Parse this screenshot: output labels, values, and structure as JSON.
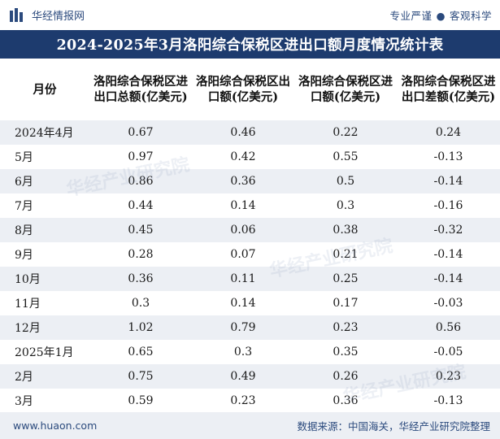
{
  "header": {
    "brand": "华经情报网",
    "tagline_left": "专业严谨",
    "tagline_right": "客观科学"
  },
  "title": "2024-2025年3月洛阳综合保税区进出口额月度情况统计表",
  "table": {
    "columns": [
      "月份",
      "洛阳综合保税区进出口总额(亿美元)",
      "洛阳综合保税区出口额(亿美元)",
      "洛阳综合保税区进口额(亿美元)",
      "洛阳综合保税区进出口差额(亿美元)"
    ],
    "rows": [
      [
        "2024年4月",
        "0.67",
        "0.46",
        "0.22",
        "0.24"
      ],
      [
        "5月",
        "0.97",
        "0.42",
        "0.55",
        "-0.13"
      ],
      [
        "6月",
        "0.86",
        "0.36",
        "0.5",
        "-0.14"
      ],
      [
        "7月",
        "0.44",
        "0.14",
        "0.3",
        "-0.16"
      ],
      [
        "8月",
        "0.45",
        "0.06",
        "0.38",
        "-0.32"
      ],
      [
        "9月",
        "0.28",
        "0.07",
        "0.21",
        "-0.14"
      ],
      [
        "10月",
        "0.36",
        "0.11",
        "0.25",
        "-0.14"
      ],
      [
        "11月",
        "0.3",
        "0.14",
        "0.17",
        "-0.03"
      ],
      [
        "12月",
        "1.02",
        "0.79",
        "0.23",
        "0.56"
      ],
      [
        "2025年1月",
        "0.65",
        "0.3",
        "0.35",
        "-0.05"
      ],
      [
        "2月",
        "0.75",
        "0.49",
        "0.26",
        "0.23"
      ],
      [
        "3月",
        "0.59",
        "0.23",
        "0.36",
        "-0.13"
      ]
    ]
  },
  "footer": {
    "website": "www.huaon.com",
    "source": "数据来源：中国海关，华经产业研究院整理"
  },
  "watermark_text": "华经产业研究院",
  "colors": {
    "title_bg": "#1d3b6e",
    "stripe": "#eceff4",
    "brand_text": "#2b4a7d"
  }
}
